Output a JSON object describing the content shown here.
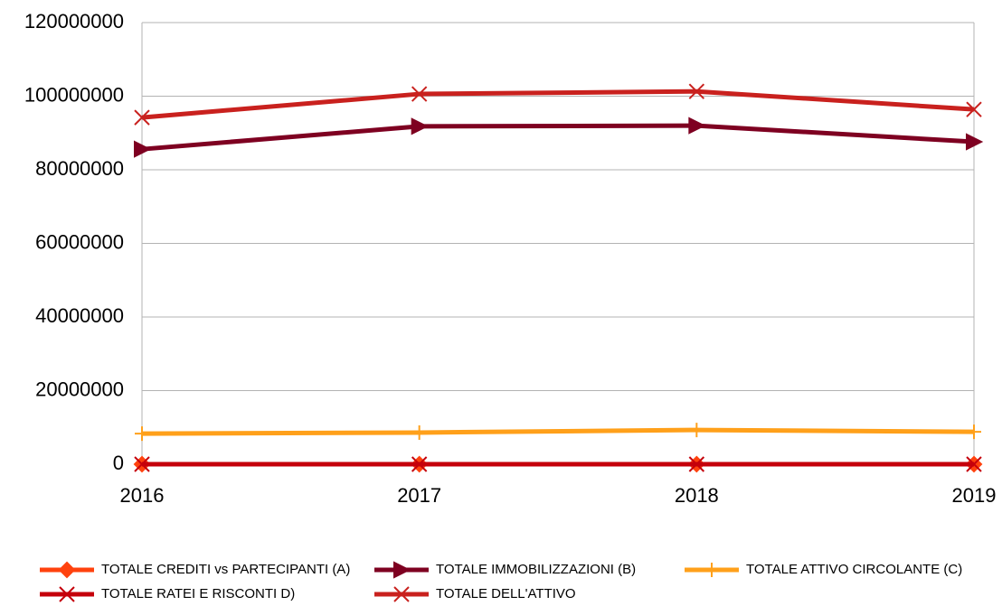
{
  "chart_data": {
    "type": "line",
    "categories": [
      "2016",
      "2017",
      "2018",
      "2019"
    ],
    "series": [
      {
        "name": "TOTALE CREDITI vs PARTECIPANTI (A)",
        "color": "#ff420e",
        "marker": "diamond",
        "values": [
          0,
          0,
          0,
          0
        ]
      },
      {
        "name": "TOTALE IMMOBILIZZAZIONI (B)",
        "color": "#7e0021",
        "marker": "arrow",
        "values": [
          85600000,
          91800000,
          92000000,
          87600000
        ]
      },
      {
        "name": "TOTALE ATTIVO CIRCOLANTE (C)",
        "color": "#ffa01a",
        "marker": "plus",
        "values": [
          8300000,
          8600000,
          9300000,
          8800000
        ]
      },
      {
        "name": "TOTALE RATEI E RISCONTI  D)",
        "color": "#c5000b",
        "marker": "x",
        "values": [
          0,
          0,
          0,
          0
        ]
      },
      {
        "name": "TOTALE DELL'ATTIVO",
        "color": "#c9211e",
        "marker": "x",
        "values": [
          94200000,
          100600000,
          101300000,
          96400000
        ]
      }
    ],
    "ylim": [
      0,
      120000000
    ],
    "yticks": [
      0,
      20000000,
      40000000,
      60000000,
      80000000,
      100000000,
      120000000
    ],
    "grid": true,
    "legend": "bottom"
  }
}
